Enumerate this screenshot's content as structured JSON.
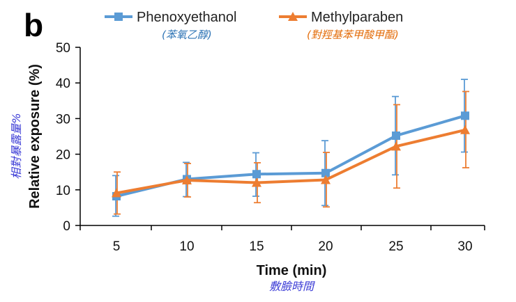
{
  "panel_label": "b",
  "colors": {
    "phenoxyethanol": "#5b9bd5",
    "methylparaben": "#ed7d31",
    "legend_sub_blue": "#2e74b5",
    "legend_sub_orange": "#e36c09",
    "annotation": "#3b3bd6"
  },
  "legend": [
    {
      "label": "Phenoxyethanol",
      "sublabel": "(苯氧乙醇)",
      "marker": "square"
    },
    {
      "label": "Methylparaben",
      "sublabel": "(對羥基苯甲酸甲酯)",
      "marker": "triangle"
    }
  ],
  "annotations": {
    "y_chinese": "相對暴露量%",
    "x_chinese": "敷臉時間"
  },
  "chart_data": {
    "type": "line",
    "title": "",
    "xlabel": "Time (min)",
    "ylabel": "Relative exposure (%)",
    "x": [
      5,
      10,
      15,
      20,
      25,
      30
    ],
    "ylim": [
      0,
      50
    ],
    "yticks": [
      0,
      10,
      20,
      30,
      40,
      50
    ],
    "grid": false,
    "legend_position": "top",
    "series": [
      {
        "name": "Phenoxyethanol",
        "values": [
          8.2,
          13.0,
          14.4,
          14.7,
          25.2,
          30.8
        ],
        "error_low": [
          2.6,
          8.1,
          8.2,
          5.6,
          14.2,
          20.6
        ],
        "error_high": [
          14.0,
          17.7,
          20.4,
          23.8,
          36.2,
          41.0
        ]
      },
      {
        "name": "Methylparaben",
        "values": [
          9.1,
          12.7,
          12.0,
          12.8,
          22.2,
          26.8
        ],
        "error_low": [
          3.2,
          8.0,
          6.4,
          5.2,
          10.5,
          16.2
        ],
        "error_high": [
          15.0,
          17.4,
          17.6,
          20.5,
          33.9,
          37.6
        ]
      }
    ]
  }
}
